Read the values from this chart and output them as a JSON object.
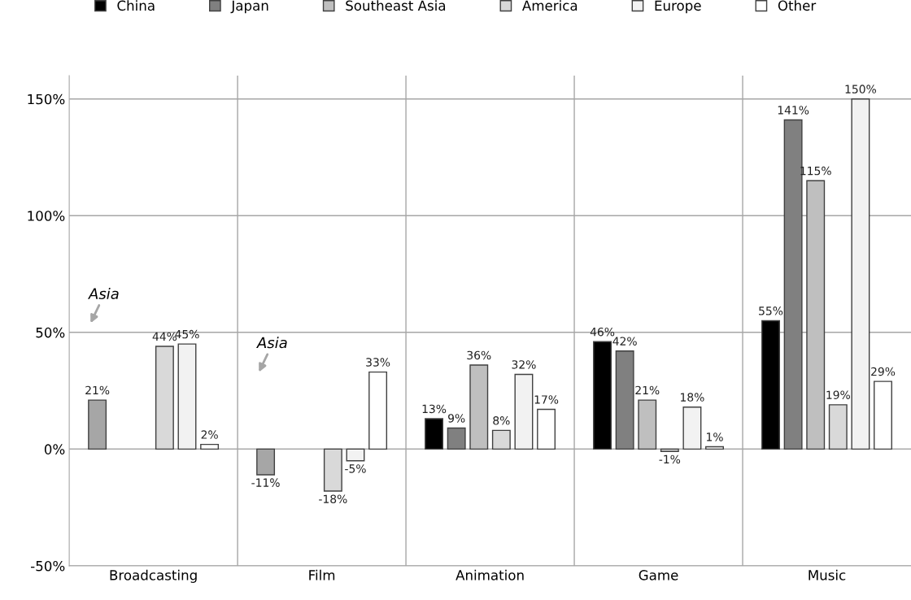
{
  "chart_data": {
    "type": "bar",
    "categories": [
      "Broadcasting",
      "Film",
      "Animation",
      "Game",
      "Music"
    ],
    "series": [
      {
        "name": "China",
        "color": "#000000",
        "colors": [
          "#a6a6a6",
          "#a6a6a6",
          "#000000",
          "#000000",
          "#000000"
        ],
        "values": [
          21,
          -11,
          13,
          46,
          55
        ],
        "value_labels": [
          "21%",
          "-11%",
          "13%",
          "46%",
          "55%"
        ]
      },
      {
        "name": "Japan",
        "color": "#808080",
        "values": [
          null,
          null,
          9,
          42,
          141
        ],
        "value_labels": [
          null,
          null,
          "9%",
          "42%",
          "141%"
        ]
      },
      {
        "name": "Southeast Asia",
        "color": "#bfbfbf",
        "values": [
          null,
          null,
          36,
          21,
          115
        ],
        "value_labels": [
          null,
          null,
          "36%",
          "21%",
          "115%"
        ]
      },
      {
        "name": "America",
        "color": "#d9d9d9",
        "values": [
          44,
          -18,
          8,
          -1,
          19
        ],
        "value_labels": [
          "44%",
          "-18%",
          "8%",
          "-1%",
          "19%"
        ]
      },
      {
        "name": "Europe",
        "color": "#f2f2f2",
        "values": [
          45,
          -5,
          32,
          18,
          150
        ],
        "value_labels": [
          "45%",
          "-5%",
          "32%",
          "18%",
          "150%"
        ]
      },
      {
        "name": "Other",
        "color": "#ffffff",
        "values": [
          2,
          33,
          17,
          1,
          29
        ],
        "value_labels": [
          "2%",
          "33%",
          "17%",
          "1%",
          "29%"
        ]
      }
    ],
    "ylim": [
      -50,
      160
    ],
    "yticks": [
      {
        "value": -50,
        "label": "-50%"
      },
      {
        "value": 0,
        "label": "0%"
      },
      {
        "value": 50,
        "label": "50%"
      },
      {
        "value": 100,
        "label": "100%"
      },
      {
        "value": 150,
        "label": "150%"
      }
    ],
    "grid": true,
    "legend": "top",
    "annotations": [
      "Asia",
      "Asia"
    ]
  }
}
